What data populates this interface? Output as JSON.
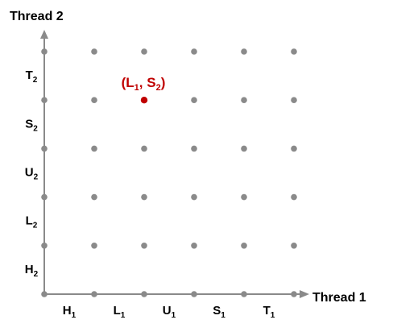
{
  "axes": {
    "x_title": "Thread 1",
    "y_title": "Thread 2"
  },
  "x_instructions": [
    {
      "base": "H",
      "sub": "1"
    },
    {
      "base": "L",
      "sub": "1"
    },
    {
      "base": "U",
      "sub": "1"
    },
    {
      "base": "S",
      "sub": "1"
    },
    {
      "base": "T",
      "sub": "1"
    }
  ],
  "y_instructions": [
    {
      "base": "H",
      "sub": "2"
    },
    {
      "base": "L",
      "sub": "2"
    },
    {
      "base": "U",
      "sub": "2"
    },
    {
      "base": "S",
      "sub": "2"
    },
    {
      "base": "T",
      "sub": "2"
    }
  ],
  "highlight": {
    "col": 2,
    "row": 4,
    "label": {
      "open": "(",
      "a_base": "L",
      "a_sub": "1",
      "sep": ", ",
      "b_base": "S",
      "b_sub": "2",
      "close": ")"
    }
  },
  "colors": {
    "axis": "#8a8a8a",
    "grid_point": "#8a8a8a",
    "highlight": "#c00000",
    "text": "#000000"
  }
}
